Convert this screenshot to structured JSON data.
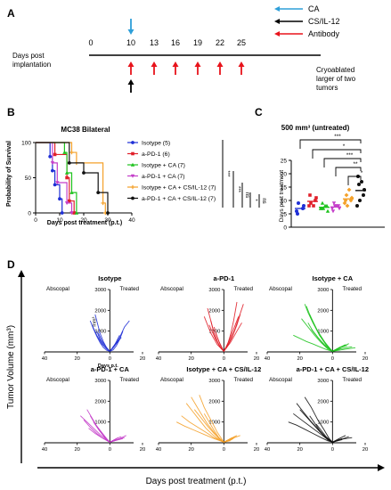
{
  "panel_labels": {
    "a": "A",
    "b": "B",
    "c": "C",
    "d": "D"
  },
  "colors": {
    "ca": "#2e9fd9",
    "cs": "#000000",
    "antibody": "#e8131b",
    "isotype": "#1f2fd6",
    "apd1": "#e0202a",
    "iso_ca": "#1ec31e",
    "apd1_ca": "#c43ec9",
    "iso_ca_cs": "#f4a12a",
    "apd1_ca_cs": "#111111"
  },
  "timeline": {
    "ylabel_line1": "Days post",
    "ylabel_line2": "implantation",
    "days": [
      "0",
      "10",
      "13",
      "16",
      "19",
      "22",
      "25"
    ],
    "legend": [
      {
        "label": "CA",
        "color": "#2e9fd9"
      },
      {
        "label": "CS/IL-12",
        "color": "#000000"
      },
      {
        "label": "Antibody",
        "color": "#e8131b"
      }
    ],
    "note_line1": "Cryoablated",
    "note_line2": "larger of two",
    "note_line3": "tumors"
  },
  "survival": {
    "title": "MC38 Bilateral",
    "ylabel": "Probability of Survival",
    "xlabel": "Days post treatment (p.t.)",
    "xticks": [
      "0",
      "10",
      "20",
      "30",
      "40"
    ],
    "yticks": [
      "0",
      "50",
      "100"
    ],
    "sig": [
      "***",
      "***",
      "ns",
      "*",
      "ns"
    ]
  },
  "days_panel": {
    "title": "500 mm³ (untreated)",
    "ylabel": "Days post treatment",
    "yticks": [
      "0",
      "5",
      "10",
      "15",
      "20",
      "25"
    ],
    "sig": [
      "***",
      "*",
      "***",
      "**",
      "*"
    ]
  },
  "spider": {
    "y_axis_label": "Tumor Volume (mm³)",
    "x_axis_label": "Days post treatment (p.t.)",
    "left_label": "Abscopal",
    "right_label": "Treated",
    "mm3_label": "mm³",
    "days_label": "Days p.t.",
    "xticks": [
      "40",
      "20",
      "0",
      "20"
    ],
    "yticks": [
      "1000",
      "2000",
      "3000"
    ]
  },
  "chart_data": [
    {
      "type": "line",
      "title": "MC38 Bilateral",
      "xlabel": "Days post treatment (p.t.)",
      "ylabel": "Probability of Survival",
      "xlim": [
        0,
        40
      ],
      "ylim": [
        0,
        100
      ],
      "series": [
        {
          "name": "Isotype (5)",
          "color": "#1f2fd6",
          "x": [
            0,
            6,
            7,
            8,
            10,
            11
          ],
          "y": [
            100,
            80,
            60,
            40,
            20,
            0
          ]
        },
        {
          "name": "a-PD-1 (6)",
          "color": "#e0202a",
          "x": [
            0,
            8,
            13,
            14,
            16
          ],
          "y": [
            100,
            83,
            50,
            17,
            0
          ]
        },
        {
          "name": "Isotype + CA (7)",
          "color": "#1ec31e",
          "x": [
            0,
            12,
            13,
            15,
            17
          ],
          "y": [
            100,
            86,
            57,
            29,
            0
          ]
        },
        {
          "name": "a-PD-1 + CA (7)",
          "color": "#c43ec9",
          "x": [
            0,
            7,
            9,
            13,
            15
          ],
          "y": [
            100,
            71,
            43,
            14,
            0
          ]
        },
        {
          "name": "Isotype + CA + CS/IL-12 (7)",
          "color": "#f4a12a",
          "x": [
            0,
            15,
            17,
            28,
            29
          ],
          "y": [
            100,
            86,
            71,
            14,
            0
          ]
        },
        {
          "name": "a-PD-1 + CA + CS/IL-12 (7)",
          "color": "#111111",
          "x": [
            0,
            14,
            20,
            26,
            30
          ],
          "y": [
            100,
            71,
            57,
            29,
            0
          ]
        }
      ]
    },
    {
      "type": "scatter",
      "title": "500 mm³ (untreated)",
      "ylabel": "Days post treatment",
      "ylim": [
        0,
        25
      ],
      "series": [
        {
          "color": "#1f2fd6",
          "values": [
            6,
            7,
            9,
            8,
            5
          ]
        },
        {
          "color": "#e0202a",
          "values": [
            8,
            10,
            9,
            11,
            12,
            8
          ]
        },
        {
          "color": "#1ec31e",
          "values": [
            7,
            8,
            9,
            6,
            7,
            8,
            7
          ]
        },
        {
          "color": "#c43ec9",
          "values": [
            7,
            8,
            9,
            7,
            6,
            8,
            8
          ]
        },
        {
          "color": "#f4a12a",
          "values": [
            9,
            10,
            12,
            11,
            10,
            14,
            8
          ]
        },
        {
          "color": "#111111",
          "values": [
            8,
            12,
            16,
            14,
            19,
            17,
            10
          ]
        }
      ]
    },
    {
      "type": "line",
      "title": "Isotype",
      "xlabel": "Days post treatment (p.t.)",
      "ylabel": "Tumor Volume (mm³)",
      "xlim": [
        -40,
        20
      ],
      "ylim": [
        0,
        3000
      ],
      "series": [
        {
          "x": [
            -12,
            -10,
            -8,
            -6,
            -4,
            -2,
            0,
            2,
            4,
            6,
            8
          ],
          "y": [
            1500,
            1100,
            750,
            450,
            220,
            80,
            30,
            100,
            300,
            600,
            1000
          ]
        },
        {
          "x": [
            -9,
            -6,
            -4,
            -2,
            0,
            2,
            4,
            6
          ],
          "y": [
            1800,
            900,
            500,
            200,
            30,
            200,
            500,
            800
          ]
        },
        {
          "x": [
            -11,
            -8,
            -5,
            -2,
            0,
            3,
            6,
            9,
            12
          ],
          "y": [
            1300,
            800,
            400,
            150,
            30,
            300,
            700,
            1200,
            1500
          ]
        },
        {
          "x": [
            -8,
            -6,
            -3,
            0,
            2,
            5,
            7
          ],
          "y": [
            1000,
            600,
            250,
            30,
            200,
            500,
            700
          ]
        },
        {
          "x": [
            -7,
            -5,
            -2,
            0,
            3,
            6
          ],
          "y": [
            900,
            550,
            200,
            30,
            350,
            600
          ]
        }
      ]
    },
    {
      "type": "line",
      "title": "a-PD-1",
      "xlabel": "Days post treatment (p.t.)",
      "ylabel": "Tumor Volume (mm³)",
      "xlim": [
        -40,
        20
      ],
      "ylim": [
        0,
        3000
      ],
      "series": [
        {
          "x": [
            -10,
            -8,
            -6,
            -4,
            -2,
            0,
            2,
            4,
            6,
            8
          ],
          "y": [
            2100,
            1500,
            900,
            500,
            200,
            30,
            300,
            800,
            1500,
            2400
          ]
        },
        {
          "x": [
            -8,
            -6,
            -4,
            -2,
            0,
            3,
            6,
            9,
            12
          ],
          "y": [
            1500,
            900,
            500,
            200,
            30,
            400,
            900,
            1600,
            2300
          ]
        },
        {
          "x": [
            -12,
            -8,
            -4,
            0,
            2,
            5,
            8,
            10
          ],
          "y": [
            1700,
            900,
            350,
            30,
            250,
            700,
            1300,
            1800
          ]
        },
        {
          "x": [
            -6,
            -4,
            -2,
            0,
            3,
            6,
            9
          ],
          "y": [
            1200,
            700,
            300,
            30,
            500,
            1100,
            1700
          ]
        },
        {
          "x": [
            -9,
            -5,
            -2,
            0,
            4,
            8,
            11
          ],
          "y": [
            1300,
            600,
            200,
            30,
            450,
            1000,
            1400
          ]
        },
        {
          "x": [
            -5,
            -3,
            0,
            3,
            7
          ],
          "y": [
            900,
            500,
            30,
            400,
            1100
          ]
        }
      ]
    },
    {
      "type": "line",
      "title": "Isotype + CA",
      "xlabel": "Days post treatment (p.t.)",
      "ylabel": "Tumor Volume (mm³)",
      "xlim": [
        -40,
        20
      ],
      "ylim": [
        0,
        3000
      ],
      "series": [
        {
          "x": [
            -17,
            -15,
            -12,
            -8,
            -4,
            0,
            3,
            5
          ],
          "y": [
            2300,
            1900,
            1400,
            800,
            350,
            30,
            150,
            250
          ]
        },
        {
          "x": [
            -16,
            -13,
            -9,
            -5,
            -2,
            0,
            4,
            8
          ],
          "y": [
            2200,
            1600,
            1000,
            500,
            200,
            30,
            200,
            350
          ]
        },
        {
          "x": [
            -19,
            -15,
            -11,
            -7,
            -3,
            0,
            5
          ],
          "y": [
            1600,
            1200,
            800,
            450,
            150,
            30,
            150
          ]
        },
        {
          "x": [
            -14,
            -11,
            -8,
            -4,
            0,
            6,
            10
          ],
          "y": [
            1800,
            1300,
            800,
            350,
            30,
            250,
            400
          ]
        },
        {
          "x": [
            -15,
            -12,
            -8,
            -4,
            0,
            4,
            9
          ],
          "y": [
            1400,
            1000,
            600,
            250,
            30,
            200,
            300
          ]
        },
        {
          "x": [
            -13,
            -9,
            -5,
            0,
            5,
            12
          ],
          "y": [
            1100,
            700,
            350,
            30,
            150,
            250
          ]
        },
        {
          "x": [
            -24,
            -20,
            -16,
            -12,
            -8,
            -4,
            0,
            7,
            14
          ],
          "y": [
            800,
            650,
            500,
            380,
            250,
            120,
            30,
            120,
            200
          ]
        }
      ]
    },
    {
      "type": "line",
      "title": "a-PD-1 + CA",
      "xlabel": "Days post treatment (p.t.)",
      "ylabel": "Tumor Volume (mm³)",
      "xlim": [
        -40,
        20
      ],
      "ylim": [
        0,
        3000
      ],
      "series": [
        {
          "x": [
            -14,
            -11,
            -8,
            -5,
            -2,
            0,
            3,
            5
          ],
          "y": [
            1600,
            1200,
            800,
            450,
            150,
            30,
            150,
            250
          ]
        },
        {
          "x": [
            -12,
            -9,
            -6,
            -3,
            0,
            4,
            7
          ],
          "y": [
            1300,
            900,
            550,
            250,
            30,
            200,
            300
          ]
        },
        {
          "x": [
            -16,
            -12,
            -8,
            -4,
            0,
            5
          ],
          "y": [
            1100,
            750,
            450,
            200,
            30,
            150
          ]
        },
        {
          "x": [
            -10,
            -7,
            -4,
            0,
            6,
            10
          ],
          "y": [
            1000,
            650,
            350,
            30,
            200,
            350
          ]
        },
        {
          "x": [
            -8,
            -5,
            -2,
            0,
            4
          ],
          "y": [
            800,
            500,
            200,
            30,
            150
          ]
        },
        {
          "x": [
            -13,
            -9,
            -5,
            0,
            3,
            8
          ],
          "y": [
            700,
            450,
            250,
            30,
            100,
            200
          ]
        },
        {
          "x": [
            -18,
            -14,
            -10,
            -6,
            -2,
            0,
            9
          ],
          "y": [
            1300,
            1000,
            700,
            400,
            150,
            30,
            250
          ]
        }
      ]
    },
    {
      "type": "line",
      "title": "Isotype + CA + CS/IL-12",
      "xlabel": "Days post treatment (p.t.)",
      "ylabel": "Tumor Volume (mm³)",
      "xlim": [
        -40,
        20
      ],
      "ylim": [
        0,
        3000
      ],
      "series": [
        {
          "x": [
            -20,
            -17,
            -14,
            -10,
            -6,
            -3,
            0,
            4,
            8
          ],
          "y": [
            2200,
            1800,
            1400,
            900,
            500,
            200,
            30,
            200,
            350
          ]
        },
        {
          "x": [
            -23,
            -19,
            -15,
            -11,
            -7,
            -3,
            0,
            5
          ],
          "y": [
            1900,
            1500,
            1100,
            700,
            400,
            150,
            30,
            150
          ]
        },
        {
          "x": [
            -26,
            -21,
            -16,
            -11,
            -6,
            0,
            3,
            7
          ],
          "y": [
            1300,
            1000,
            750,
            500,
            250,
            30,
            150,
            300
          ]
        },
        {
          "x": [
            -18,
            -14,
            -10,
            -6,
            -2,
            0,
            6
          ],
          "y": [
            1600,
            1200,
            800,
            450,
            150,
            30,
            200
          ]
        },
        {
          "x": [
            -15,
            -12,
            -8,
            -4,
            0,
            3,
            5
          ],
          "y": [
            2300,
            1700,
            1100,
            500,
            30,
            150,
            250
          ]
        },
        {
          "x": [
            -29,
            -24,
            -18,
            -12,
            -6,
            0,
            4
          ],
          "y": [
            1000,
            800,
            600,
            400,
            200,
            30,
            100
          ]
        },
        {
          "x": [
            -12,
            -9,
            -6,
            -3,
            0,
            5,
            10
          ],
          "y": [
            1400,
            1000,
            600,
            250,
            30,
            200,
            350
          ]
        }
      ]
    },
    {
      "type": "line",
      "title": "a-PD-1 + CA + CS/IL-12",
      "xlabel": "Days post treatment (p.t.)",
      "ylabel": "Tumor Volume (mm³)",
      "xlim": [
        -40,
        20
      ],
      "ylim": [
        0,
        3000
      ],
      "series": [
        {
          "x": [
            -22,
            -18,
            -14,
            -10,
            -6,
            -3,
            0,
            4,
            8
          ],
          "y": [
            1900,
            1500,
            1100,
            750,
            400,
            150,
            30,
            200,
            350
          ]
        },
        {
          "x": [
            -20,
            -16,
            -12,
            -8,
            -4,
            0,
            5,
            10
          ],
          "y": [
            1600,
            1250,
            900,
            550,
            250,
            30,
            150,
            300
          ]
        },
        {
          "x": [
            -27,
            -22,
            -17,
            -12,
            -7,
            -3,
            0,
            3
          ],
          "y": [
            1000,
            850,
            650,
            450,
            250,
            100,
            30,
            100
          ]
        },
        {
          "x": [
            -17,
            -13,
            -9,
            -5,
            -2,
            0,
            6
          ],
          "y": [
            2200,
            1700,
            1100,
            600,
            200,
            30,
            200
          ]
        },
        {
          "x": [
            -14,
            -11,
            -8,
            -4,
            0,
            4,
            12
          ],
          "y": [
            1300,
            950,
            600,
            250,
            30,
            150,
            250
          ]
        },
        {
          "x": [
            -10,
            -7,
            -4,
            0,
            6
          ],
          "y": [
            900,
            600,
            300,
            30,
            150
          ]
        },
        {
          "x": [
            -24,
            -19,
            -13,
            -7,
            -2,
            0,
            2
          ],
          "y": [
            1400,
            1100,
            750,
            400,
            100,
            30,
            80
          ]
        }
      ]
    }
  ]
}
